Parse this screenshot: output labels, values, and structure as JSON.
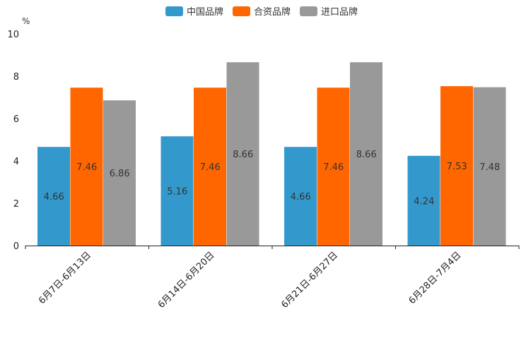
{
  "chart_data": {
    "type": "bar",
    "unit": "%",
    "categories": [
      "6月7日-6月13日",
      "6月14日-6月20日",
      "6月21日-6月27日",
      "6月28日-7月4日"
    ],
    "series": [
      {
        "name": "中国品牌",
        "color": "#3399cc",
        "values": [
          4.66,
          5.16,
          4.66,
          4.24
        ]
      },
      {
        "name": "合资品牌",
        "color": "#ff6600",
        "values": [
          7.46,
          7.46,
          7.46,
          7.53
        ]
      },
      {
        "name": "进口品牌",
        "color": "#999999",
        "values": [
          6.86,
          8.66,
          8.66,
          7.48
        ]
      }
    ],
    "labels": [
      [
        "4.66",
        "5.16",
        "4.66",
        "4.24"
      ],
      [
        "7.46",
        "7.46",
        "7.46",
        "7.53"
      ],
      [
        "6.86",
        "8.66",
        "8.66",
        "7.48"
      ]
    ],
    "ylim": [
      0,
      10
    ],
    "yticks": [
      0,
      2,
      4,
      6,
      8,
      10
    ],
    "legend_position": "top-center",
    "grid": false,
    "xlabel": "",
    "ylabel": "%"
  }
}
